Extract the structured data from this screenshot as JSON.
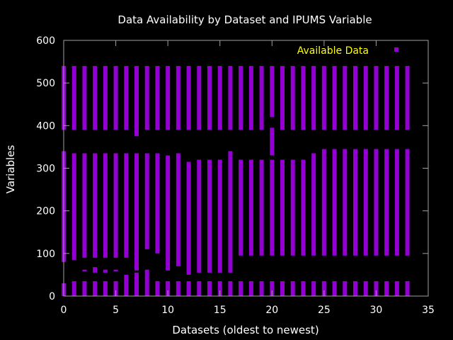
{
  "chart_data": {
    "type": "scatter",
    "title": "Data Availability by Dataset and IPUMS Variable",
    "xlabel": "Datasets (oldest to newest)",
    "ylabel": "Variables",
    "xlim": [
      0,
      35
    ],
    "ylim": [
      0,
      600
    ],
    "xticks": [
      "0",
      "5",
      "10",
      "15",
      "20",
      "25",
      "30",
      "35"
    ],
    "yticks": [
      "0",
      "100",
      "200",
      "300",
      "400",
      "500",
      "600"
    ],
    "legend": {
      "label": "Available Data",
      "position": "top-right"
    },
    "grid": false,
    "colors": {
      "points": "#9400D3",
      "legend_text": "#FFFF00",
      "text": "#FFFFFF",
      "axes": "#A0A0A0"
    },
    "series": [
      {
        "name": "Available Data",
        "columns": [
          {
            "x": 0,
            "ranges": [
              [
                0,
                30
              ],
              [
                80,
                340
              ],
              [
                390,
                540
              ]
            ]
          },
          {
            "x": 1,
            "ranges": [
              [
                0,
                35
              ],
              [
                85,
                335
              ],
              [
                390,
                540
              ]
            ]
          },
          {
            "x": 2,
            "ranges": [
              [
                0,
                35
              ],
              [
                58,
                62
              ],
              [
                90,
                335
              ],
              [
                390,
                540
              ]
            ]
          },
          {
            "x": 3,
            "ranges": [
              [
                0,
                35
              ],
              [
                55,
                68
              ],
              [
                90,
                335
              ],
              [
                390,
                540
              ]
            ]
          },
          {
            "x": 4,
            "ranges": [
              [
                0,
                35
              ],
              [
                55,
                62
              ],
              [
                90,
                335
              ],
              [
                390,
                540
              ]
            ]
          },
          {
            "x": 5,
            "ranges": [
              [
                0,
                35
              ],
              [
                58,
                62
              ],
              [
                90,
                335
              ],
              [
                390,
                540
              ]
            ]
          },
          {
            "x": 6,
            "ranges": [
              [
                0,
                50
              ],
              [
                90,
                335
              ],
              [
                390,
                540
              ]
            ]
          },
          {
            "x": 7,
            "ranges": [
              [
                0,
                55
              ],
              [
                60,
                335
              ],
              [
                375,
                540
              ]
            ]
          },
          {
            "x": 8,
            "ranges": [
              [
                0,
                62
              ],
              [
                110,
                335
              ],
              [
                390,
                540
              ]
            ]
          },
          {
            "x": 9,
            "ranges": [
              [
                0,
                35
              ],
              [
                100,
                335
              ],
              [
                390,
                540
              ]
            ]
          },
          {
            "x": 10,
            "ranges": [
              [
                0,
                35
              ],
              [
                60,
                330
              ],
              [
                390,
                540
              ]
            ]
          },
          {
            "x": 11,
            "ranges": [
              [
                0,
                35
              ],
              [
                70,
                335
              ],
              [
                390,
                540
              ]
            ]
          },
          {
            "x": 12,
            "ranges": [
              [
                0,
                35
              ],
              [
                50,
                315
              ],
              [
                390,
                540
              ]
            ]
          },
          {
            "x": 13,
            "ranges": [
              [
                0,
                35
              ],
              [
                55,
                320
              ],
              [
                390,
                540
              ]
            ]
          },
          {
            "x": 14,
            "ranges": [
              [
                0,
                35
              ],
              [
                55,
                320
              ],
              [
                390,
                540
              ]
            ]
          },
          {
            "x": 15,
            "ranges": [
              [
                0,
                35
              ],
              [
                55,
                320
              ],
              [
                390,
                540
              ]
            ]
          },
          {
            "x": 16,
            "ranges": [
              [
                0,
                35
              ],
              [
                55,
                340
              ],
              [
                390,
                540
              ]
            ]
          },
          {
            "x": 17,
            "ranges": [
              [
                0,
                35
              ],
              [
                95,
                320
              ],
              [
                390,
                540
              ]
            ]
          },
          {
            "x": 18,
            "ranges": [
              [
                0,
                35
              ],
              [
                95,
                320
              ],
              [
                390,
                540
              ]
            ]
          },
          {
            "x": 19,
            "ranges": [
              [
                0,
                35
              ],
              [
                95,
                320
              ],
              [
                390,
                540
              ]
            ]
          },
          {
            "x": 20,
            "ranges": [
              [
                0,
                35
              ],
              [
                95,
                320
              ],
              [
                330,
                395
              ],
              [
                420,
                540
              ]
            ]
          },
          {
            "x": 21,
            "ranges": [
              [
                0,
                35
              ],
              [
                95,
                320
              ],
              [
                390,
                540
              ]
            ]
          },
          {
            "x": 22,
            "ranges": [
              [
                0,
                35
              ],
              [
                95,
                320
              ],
              [
                390,
                540
              ]
            ]
          },
          {
            "x": 23,
            "ranges": [
              [
                0,
                35
              ],
              [
                95,
                320
              ],
              [
                390,
                540
              ]
            ]
          },
          {
            "x": 24,
            "ranges": [
              [
                0,
                35
              ],
              [
                95,
                335
              ],
              [
                390,
                540
              ]
            ]
          },
          {
            "x": 25,
            "ranges": [
              [
                0,
                35
              ],
              [
                95,
                345
              ],
              [
                390,
                540
              ]
            ]
          },
          {
            "x": 26,
            "ranges": [
              [
                0,
                35
              ],
              [
                95,
                345
              ],
              [
                390,
                540
              ]
            ]
          },
          {
            "x": 27,
            "ranges": [
              [
                0,
                35
              ],
              [
                95,
                345
              ],
              [
                390,
                540
              ]
            ]
          },
          {
            "x": 28,
            "ranges": [
              [
                0,
                35
              ],
              [
                95,
                345
              ],
              [
                390,
                540
              ]
            ]
          },
          {
            "x": 29,
            "ranges": [
              [
                0,
                35
              ],
              [
                95,
                345
              ],
              [
                390,
                540
              ]
            ]
          },
          {
            "x": 30,
            "ranges": [
              [
                0,
                35
              ],
              [
                95,
                345
              ],
              [
                390,
                540
              ]
            ]
          },
          {
            "x": 31,
            "ranges": [
              [
                0,
                35
              ],
              [
                95,
                345
              ],
              [
                390,
                540
              ]
            ]
          },
          {
            "x": 32,
            "ranges": [
              [
                0,
                35
              ],
              [
                95,
                345
              ],
              [
                390,
                540
              ]
            ]
          },
          {
            "x": 33,
            "ranges": [
              [
                0,
                35
              ],
              [
                95,
                345
              ],
              [
                390,
                540
              ]
            ]
          }
        ]
      }
    ]
  }
}
